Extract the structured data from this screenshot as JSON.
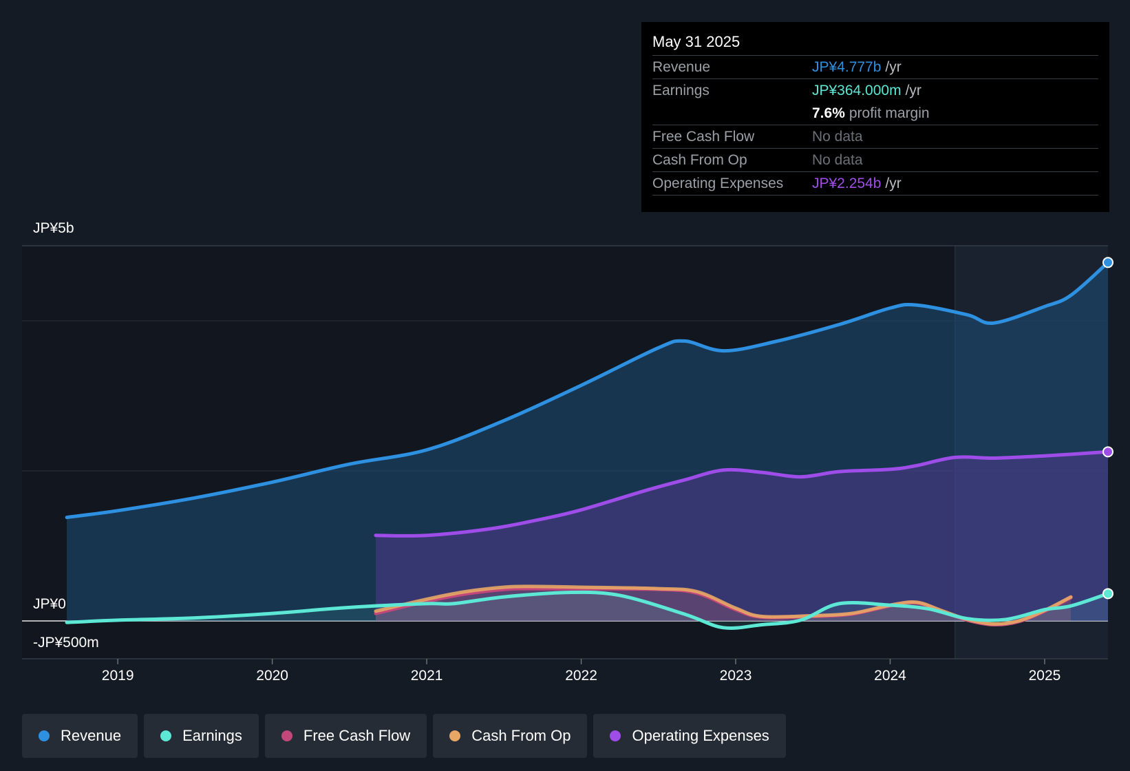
{
  "chart_data": {
    "type": "area",
    "title": "",
    "ylim": [
      -500,
      5000
    ],
    "y_unit": "JP¥ millions",
    "y_tick_labels": [
      "JP¥5b",
      "JP¥0",
      "-JP¥500m"
    ],
    "x_tick_labels": [
      "2019",
      "2020",
      "2021",
      "2022",
      "2023",
      "2024",
      "2025"
    ],
    "x_ticks": [
      2019,
      2020,
      2021,
      2022,
      2023,
      2024,
      2025
    ],
    "xlim": [
      2018.38,
      2025.41
    ],
    "highlight_start": 2024.42,
    "grid": true,
    "series": [
      {
        "name": "Revenue",
        "color": "#2e90e0",
        "fill": true,
        "x": [
          2018.67,
          2019.0,
          2019.5,
          2020.0,
          2020.5,
          2021.0,
          2021.5,
          2022.0,
          2022.5,
          2022.67,
          2022.92,
          2023.25,
          2023.67,
          2024.0,
          2024.17,
          2024.5,
          2024.67,
          2025.0,
          2025.17,
          2025.41
        ],
        "values": [
          1380,
          1470,
          1640,
          1850,
          2090,
          2280,
          2670,
          3140,
          3640,
          3730,
          3600,
          3720,
          3950,
          4170,
          4210,
          4080,
          3970,
          4190,
          4340,
          4777
        ]
      },
      {
        "name": "Earnings",
        "color": "#5ce8d4",
        "fill": true,
        "x": [
          2018.67,
          2019.0,
          2019.5,
          2020.0,
          2020.5,
          2021.0,
          2021.17,
          2021.5,
          2021.92,
          2022.25,
          2022.67,
          2022.92,
          2023.17,
          2023.42,
          2023.67,
          2024.0,
          2024.25,
          2024.5,
          2024.75,
          2025.0,
          2025.17,
          2025.41
        ],
        "values": [
          -20,
          10,
          40,
          100,
          180,
          230,
          230,
          320,
          380,
          340,
          90,
          -90,
          -50,
          10,
          230,
          210,
          160,
          30,
          20,
          150,
          200,
          364
        ]
      },
      {
        "name": "Free Cash Flow",
        "color": "#c2477a",
        "fill": true,
        "x": [
          2020.67,
          2021.0,
          2021.25,
          2021.5,
          2021.67,
          2022.0,
          2022.5,
          2022.75,
          2023.0,
          2023.17,
          2023.5,
          2023.75,
          2024.0,
          2024.17,
          2024.33,
          2024.5,
          2024.67,
          2024.83,
          2025.0,
          2025.17
        ],
        "values": [
          100,
          260,
          360,
          420,
          430,
          430,
          420,
          370,
          150,
          50,
          60,
          90,
          200,
          240,
          130,
          10,
          -50,
          -10,
          130,
          310
        ]
      },
      {
        "name": "Cash From Op",
        "color": "#e8a765",
        "fill": true,
        "x": [
          2020.67,
          2021.0,
          2021.25,
          2021.5,
          2021.67,
          2022.0,
          2022.5,
          2022.75,
          2023.0,
          2023.17,
          2023.5,
          2023.75,
          2024.0,
          2024.17,
          2024.33,
          2024.5,
          2024.67,
          2024.83,
          2025.0,
          2025.17
        ],
        "values": [
          130,
          290,
          390,
          450,
          460,
          450,
          430,
          390,
          170,
          60,
          70,
          100,
          210,
          250,
          140,
          20,
          -40,
          0,
          140,
          320
        ]
      },
      {
        "name": "Operating Expenses",
        "color": "#9e4de8",
        "fill": true,
        "x": [
          2020.67,
          2021.0,
          2021.42,
          2021.75,
          2022.0,
          2022.42,
          2022.67,
          2022.92,
          2023.17,
          2023.42,
          2023.67,
          2024.0,
          2024.17,
          2024.42,
          2024.67,
          2025.0,
          2025.41
        ],
        "values": [
          1140,
          1140,
          1230,
          1360,
          1480,
          1740,
          1880,
          2010,
          1980,
          1920,
          1990,
          2020,
          2070,
          2180,
          2170,
          2200,
          2254
        ]
      }
    ]
  },
  "tooltip": {
    "date": "May 31 2025",
    "rows": [
      {
        "label": "Revenue",
        "value": "JP¥4.777b",
        "suffix": "/yr",
        "color": "#2e90e0"
      },
      {
        "label": "Earnings",
        "value": "JP¥364.000m",
        "suffix": "/yr",
        "color": "#5ce8d4"
      },
      {
        "label": "",
        "value": "7.6%",
        "suffix": "profit margin",
        "color": "#ffffff"
      },
      {
        "label": "Free Cash Flow",
        "value": "No data",
        "suffix": "",
        "color": "#6b7077"
      },
      {
        "label": "Cash From Op",
        "value": "No data",
        "suffix": "",
        "color": "#6b7077"
      },
      {
        "label": "Operating Expenses",
        "value": "JP¥2.254b",
        "suffix": "/yr",
        "color": "#9e4de8"
      }
    ]
  },
  "legend": [
    {
      "label": "Revenue",
      "color": "#2e90e0"
    },
    {
      "label": "Earnings",
      "color": "#5ce8d4"
    },
    {
      "label": "Free Cash Flow",
      "color": "#c2477a"
    },
    {
      "label": "Cash From Op",
      "color": "#e8a765"
    },
    {
      "label": "Operating Expenses",
      "color": "#9e4de8"
    }
  ]
}
